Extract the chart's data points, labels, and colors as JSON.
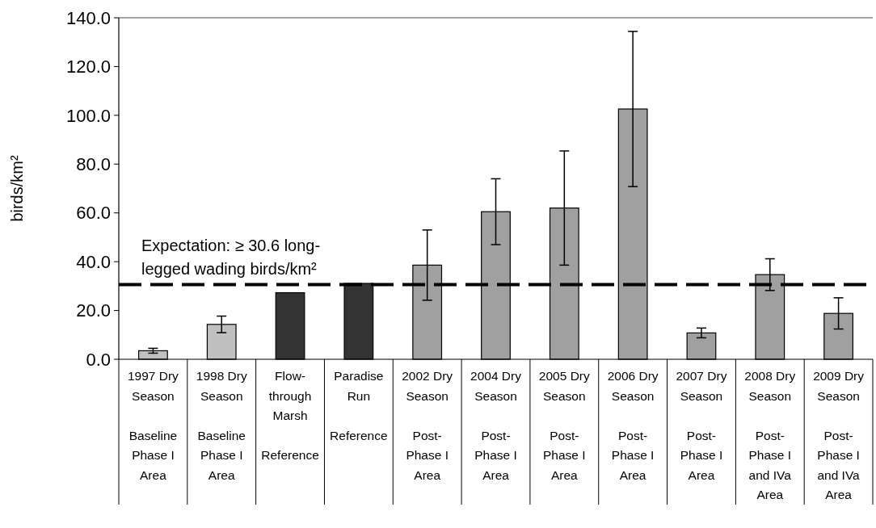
{
  "chart_data": {
    "type": "bar",
    "ylabel": "birds/km²",
    "categories": [
      "1997 Dry\nSeason\n\nBaseline\nPhase I\nArea",
      "1998 Dry\nSeason\n\nBaseline\nPhase I\nArea",
      "Flow-\nthrough\nMarsh\n\nReference",
      "Paradise\nRun\n\nReference",
      "2002 Dry\nSeason\n\nPost-\nPhase I\nArea",
      "2004 Dry\nSeason\n\nPost-\nPhase I\nArea",
      "2005 Dry\nSeason\n\nPost-\nPhase I\nArea",
      "2006 Dry\nSeason\n\nPost-\nPhase I\nArea",
      "2007 Dry\nSeason\n\nPost-\nPhase I\nArea",
      "2008 Dry\nSeason\n\nPost-\nPhase I\nand IVa\nArea",
      "2009 Dry\nSeason\n\nPost-\nPhase I\nand IVa\nArea"
    ],
    "values": [
      3.5,
      14.3,
      27.3,
      31.1,
      38.6,
      60.5,
      62.0,
      102.6,
      10.8,
      34.7,
      18.8
    ],
    "errors": [
      1.0,
      3.4,
      null,
      null,
      14.4,
      13.5,
      23.4,
      31.8,
      2.0,
      6.5,
      6.4
    ],
    "colors": [
      "#c0c0c0",
      "#c0c0c0",
      "#333333",
      "#333333",
      "#a0a0a0",
      "#a0a0a0",
      "#a0a0a0",
      "#a0a0a0",
      "#a0a0a0",
      "#a0a0a0",
      "#a0a0a0"
    ],
    "ylim": [
      0,
      140
    ],
    "yticks": [
      {
        "value": 0,
        "label": "0.0"
      },
      {
        "value": 20,
        "label": "20.0"
      },
      {
        "value": 40,
        "label": "40.0"
      },
      {
        "value": 60,
        "label": "60.0"
      },
      {
        "value": 80,
        "label": "80.0"
      },
      {
        "value": 100,
        "label": "100.0"
      },
      {
        "value": 120,
        "label": "120.0"
      },
      {
        "value": 140,
        "label": "140.0"
      }
    ],
    "ref_lines": [
      {
        "axis": "y",
        "value": 30.6,
        "label": "Expectation: ≥ 30.6 long-\nlegged wading birds/km²",
        "color": "#000000",
        "line_style": "dashed"
      }
    ],
    "grid": false
  }
}
